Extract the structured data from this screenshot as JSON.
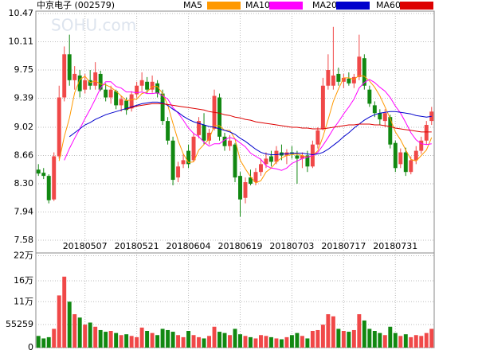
{
  "chart_data": [
    {
      "type": "candlestick",
      "title": "中京电子 (002579)",
      "watermark": "SOHU.com",
      "categories": [
        null,
        null,
        null,
        null,
        null,
        null,
        null,
        null,
        null,
        "20180507",
        null,
        null,
        null,
        null,
        null,
        null,
        null,
        null,
        null,
        "20180521",
        null,
        null,
        null,
        null,
        null,
        null,
        null,
        null,
        null,
        "20180604",
        null,
        null,
        null,
        null,
        null,
        null,
        null,
        null,
        null,
        "20180619",
        null,
        null,
        null,
        null,
        null,
        null,
        null,
        null,
        null,
        "20180703",
        null,
        null,
        null,
        null,
        null,
        null,
        null,
        null,
        null,
        "20180717",
        null,
        null,
        null,
        null,
        null,
        null,
        null,
        null,
        null,
        "20180731",
        null,
        null,
        null,
        null,
        null,
        null,
        null
      ],
      "open": [
        8.48,
        8.44,
        8.4,
        8.1,
        8.65,
        9.4,
        9.95,
        9.62,
        9.68,
        9.5,
        9.62,
        9.55,
        9.7,
        9.5,
        9.4,
        9.48,
        9.3,
        9.36,
        9.26,
        9.44,
        9.55,
        9.6,
        9.5,
        9.58,
        9.45,
        9.1,
        8.85,
        8.38,
        8.55,
        8.72,
        8.6,
        8.92,
        9.05,
        8.85,
        9.0,
        9.4,
        8.9,
        8.78,
        8.8,
        8.4,
        8.12,
        8.38,
        8.32,
        8.45,
        8.55,
        8.65,
        8.58,
        8.7,
        8.66,
        8.7,
        8.66,
        8.62,
        8.66,
        8.52,
        8.8,
        9.0,
        9.55,
        9.55,
        9.7,
        9.6,
        9.64,
        9.58,
        9.66,
        9.9,
        9.5,
        9.3,
        9.2,
        9.1,
        9.15,
        8.82,
        8.55,
        8.7,
        8.45,
        8.6,
        8.72,
        8.85,
        9.1
      ],
      "high": [
        8.55,
        8.5,
        8.42,
        8.7,
        9.55,
        10.05,
        10.2,
        9.8,
        9.75,
        9.7,
        9.75,
        9.85,
        9.74,
        9.58,
        9.55,
        9.5,
        9.42,
        9.4,
        9.48,
        9.6,
        9.72,
        9.66,
        9.68,
        9.62,
        9.5,
        9.15,
        8.9,
        8.58,
        8.68,
        8.8,
        8.95,
        9.15,
        9.2,
        9.0,
        9.5,
        9.45,
        8.95,
        8.92,
        8.82,
        8.45,
        8.38,
        8.48,
        8.5,
        8.62,
        8.7,
        8.72,
        8.78,
        8.8,
        8.74,
        8.78,
        8.72,
        8.7,
        8.72,
        8.85,
        9.02,
        9.65,
        9.95,
        10.3,
        9.78,
        9.7,
        9.72,
        9.7,
        10.2,
        9.95,
        9.55,
        9.35,
        9.25,
        9.25,
        9.18,
        8.85,
        8.75,
        8.76,
        8.65,
        8.78,
        8.9,
        9.1,
        9.28
      ],
      "low": [
        8.4,
        8.36,
        8.05,
        8.08,
        8.62,
        9.35,
        9.55,
        9.5,
        9.4,
        9.45,
        9.5,
        9.5,
        9.48,
        9.35,
        9.32,
        9.25,
        9.22,
        9.18,
        9.22,
        9.4,
        9.48,
        9.45,
        9.46,
        9.4,
        9.05,
        8.8,
        8.28,
        8.32,
        8.5,
        8.5,
        8.58,
        8.88,
        8.8,
        8.8,
        8.98,
        8.85,
        8.72,
        8.72,
        8.32,
        7.88,
        8.05,
        8.28,
        8.28,
        8.4,
        8.5,
        8.52,
        8.55,
        8.6,
        8.55,
        8.62,
        8.3,
        8.5,
        8.45,
        8.5,
        8.75,
        8.98,
        9.5,
        9.5,
        9.55,
        9.52,
        9.55,
        9.52,
        9.62,
        9.5,
        9.28,
        9.15,
        9.05,
        9.02,
        8.75,
        8.45,
        8.5,
        8.4,
        8.42,
        8.55,
        8.68,
        8.8,
        9.05
      ],
      "close": [
        8.43,
        8.4,
        8.09,
        8.65,
        9.4,
        9.95,
        9.62,
        9.7,
        9.48,
        9.62,
        9.55,
        9.72,
        9.5,
        9.4,
        9.5,
        9.3,
        9.38,
        9.24,
        9.44,
        9.55,
        9.62,
        9.5,
        9.6,
        9.45,
        9.1,
        8.85,
        8.35,
        8.52,
        8.6,
        8.55,
        8.9,
        9.1,
        8.85,
        8.95,
        9.42,
        8.9,
        8.78,
        8.85,
        8.38,
        8.1,
        8.32,
        8.3,
        8.45,
        8.55,
        8.62,
        8.58,
        8.72,
        8.66,
        8.7,
        8.68,
        8.62,
        8.66,
        8.52,
        8.8,
        8.98,
        9.55,
        9.75,
        9.68,
        9.6,
        9.65,
        9.58,
        9.66,
        9.92,
        9.55,
        9.32,
        9.2,
        9.12,
        9.2,
        8.8,
        8.5,
        8.7,
        8.45,
        8.6,
        8.72,
        8.85,
        9.05,
        9.22
      ],
      "up_color": "#f04848",
      "down_color": "#118811",
      "series": [
        {
          "name": "MA5",
          "color": "#ff9900",
          "values": [
            null,
            null,
            null,
            null,
            8.59,
            8.9,
            9.14,
            9.46,
            9.63,
            9.67,
            9.59,
            9.61,
            9.57,
            9.56,
            9.53,
            9.48,
            9.42,
            9.36,
            9.37,
            9.38,
            9.45,
            9.47,
            9.54,
            9.54,
            9.45,
            9.3,
            9.07,
            8.85,
            8.68,
            8.57,
            8.58,
            8.73,
            8.8,
            8.87,
            9.04,
            9.04,
            8.98,
            8.98,
            8.87,
            8.6,
            8.49,
            8.39,
            8.31,
            8.34,
            8.45,
            8.5,
            8.58,
            8.63,
            8.66,
            8.67,
            8.68,
            8.66,
            8.64,
            8.66,
            8.72,
            8.9,
            9.12,
            9.35,
            9.51,
            9.65,
            9.65,
            9.63,
            9.68,
            9.67,
            9.61,
            9.53,
            9.42,
            9.28,
            9.13,
            8.96,
            8.86,
            8.73,
            8.61,
            8.59,
            8.66,
            8.73,
            8.89
          ]
        },
        {
          "name": "MA10",
          "color": "#ff00ff",
          "values": [
            null,
            null,
            null,
            null,
            null,
            8.6,
            8.75,
            8.88,
            9.0,
            9.13,
            9.25,
            9.38,
            9.52,
            9.6,
            9.6,
            9.54,
            9.52,
            9.47,
            9.47,
            9.46,
            9.47,
            9.45,
            9.45,
            9.46,
            9.42,
            9.38,
            9.27,
            9.2,
            9.11,
            9.01,
            8.94,
            8.9,
            8.83,
            8.78,
            8.81,
            8.81,
            8.86,
            8.89,
            8.87,
            8.82,
            8.77,
            8.69,
            8.65,
            8.61,
            8.53,
            8.5,
            8.49,
            8.47,
            8.5,
            8.56,
            8.59,
            8.62,
            8.64,
            8.66,
            8.7,
            8.79,
            8.89,
            9.0,
            9.09,
            9.19,
            9.28,
            9.38,
            9.52,
            9.59,
            9.63,
            9.59,
            9.53,
            9.48,
            9.4,
            9.29,
            9.2,
            9.08,
            8.95,
            8.86,
            8.81,
            8.8,
            8.81
          ]
        },
        {
          "name": "MA20",
          "color": "#0000cc",
          "values": [
            null,
            null,
            null,
            null,
            null,
            null,
            8.9,
            8.95,
            9.0,
            9.05,
            9.08,
            9.12,
            9.15,
            9.18,
            9.2,
            9.22,
            9.24,
            9.26,
            9.28,
            9.3,
            9.32,
            9.33,
            9.34,
            9.34,
            9.33,
            9.3,
            9.25,
            9.21,
            9.16,
            9.12,
            9.09,
            9.07,
            9.05,
            9.03,
            9.02,
            9.0,
            8.98,
            8.96,
            8.93,
            8.88,
            8.84,
            8.79,
            8.74,
            8.7,
            8.68,
            8.67,
            8.67,
            8.68,
            8.68,
            8.69,
            8.69,
            8.69,
            8.68,
            8.67,
            8.68,
            8.7,
            8.74,
            8.79,
            8.84,
            8.9,
            8.95,
            9.01,
            9.06,
            9.11,
            9.15,
            9.18,
            9.2,
            9.21,
            9.22,
            9.22,
            9.21,
            9.2,
            9.19,
            9.17,
            9.16,
            9.15,
            9.16
          ]
        },
        {
          "name": "MA60",
          "color": "#dd0000",
          "values": [
            null,
            null,
            null,
            null,
            null,
            null,
            null,
            null,
            null,
            null,
            null,
            null,
            null,
            null,
            null,
            null,
            null,
            9.25,
            9.27,
            9.29,
            9.3,
            9.31,
            9.32,
            9.32,
            9.32,
            9.31,
            9.3,
            9.29,
            9.28,
            9.27,
            9.26,
            9.25,
            9.24,
            9.22,
            9.21,
            9.2,
            9.18,
            9.17,
            9.15,
            9.14,
            9.12,
            9.11,
            9.09,
            9.08,
            9.07,
            9.06,
            9.05,
            9.04,
            9.03,
            9.02,
            9.02,
            9.01,
            9.01,
            9.0,
            9.0,
            9.0,
            9.01,
            9.02,
            9.03,
            9.04,
            9.05,
            9.05,
            9.06,
            9.06,
            9.06,
            9.05,
            9.05,
            9.04,
            9.03,
            9.01,
            9.0,
            8.99,
            8.98,
            8.97,
            8.96,
            8.96,
            8.96
          ]
        }
      ],
      "ylim": [
        7.58,
        10.47
      ],
      "yticks": [
        10.47,
        10.11,
        9.75,
        9.39,
        9.02,
        8.66,
        {
          "value": 8.3,
          "label": "8.30"
        },
        7.94,
        7.58
      ],
      "grid": true
    },
    {
      "type": "bar",
      "values": [
        28000,
        22000,
        25000,
        45000,
        125000,
        170000,
        110000,
        80000,
        72000,
        55000,
        60000,
        50000,
        42000,
        38000,
        40000,
        35000,
        30000,
        32000,
        28000,
        25000,
        48000,
        40000,
        35000,
        30000,
        45000,
        42000,
        38000,
        30000,
        25000,
        40000,
        30000,
        25000,
        22000,
        28000,
        50000,
        38000,
        35000,
        30000,
        45000,
        32000,
        28000,
        25000,
        22000,
        30000,
        28000,
        25000,
        22000,
        20000,
        25000,
        30000,
        35000,
        28000,
        22000,
        40000,
        42000,
        55000,
        80000,
        75000,
        45000,
        40000,
        38000,
        42000,
        80000,
        65000,
        45000,
        40000,
        35000,
        30000,
        50000,
        35000,
        28000,
        32000,
        25000,
        30000,
        28000,
        35000,
        45000
      ],
      "ylim": [
        0,
        221036
      ],
      "yticks": [
        0,
        55259,
        {
          "value": 110000,
          "label": "11万"
        },
        {
          "value": 160000,
          "label": "16万"
        },
        {
          "value": 220000,
          "label": "22万"
        }
      ],
      "grid": true
    }
  ]
}
